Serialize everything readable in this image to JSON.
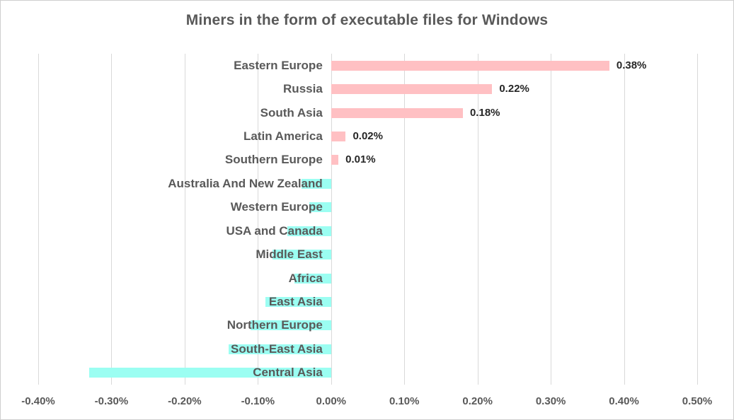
{
  "chart_data": {
    "type": "bar",
    "orientation": "horizontal",
    "title": "Miners in the form of executable files for Windows",
    "categories": [
      "Eastern Europe",
      "Russia",
      "South Asia",
      "Latin America",
      "Southern Europe",
      "Australia And New Zealand",
      "Western Europe",
      "USA and Canada",
      "Middle East",
      "Africa",
      "East Asia",
      "Northern Europe",
      "South-East Asia",
      "Central Asia"
    ],
    "values": [
      0.38,
      0.22,
      0.18,
      0.02,
      0.01,
      -0.04,
      -0.03,
      -0.06,
      -0.08,
      -0.05,
      -0.09,
      -0.11,
      -0.14,
      -0.33
    ],
    "data_labels": [
      "0.38%",
      "0.22%",
      "0.18%",
      "0.02%",
      "0.01%",
      "",
      "",
      "",
      "",
      "",
      "",
      "",
      "",
      ""
    ],
    "x_ticks": [
      "-0.40%",
      "-0.30%",
      "-0.20%",
      "-0.10%",
      "0.00%",
      "0.10%",
      "0.20%",
      "0.30%",
      "0.40%",
      "0.50%"
    ],
    "xlim": [
      -0.4,
      0.5
    ],
    "grid": true,
    "legend": "none",
    "colors": {
      "positive_bar": "#FFC0C3",
      "negative_bar": "#9BFEF2",
      "gridline": "#D9D9D9",
      "title_text": "#595959",
      "category_text": "#595959",
      "value_text": "#262626",
      "border": "#CFCFCF",
      "background": "#FFFFFF"
    }
  }
}
